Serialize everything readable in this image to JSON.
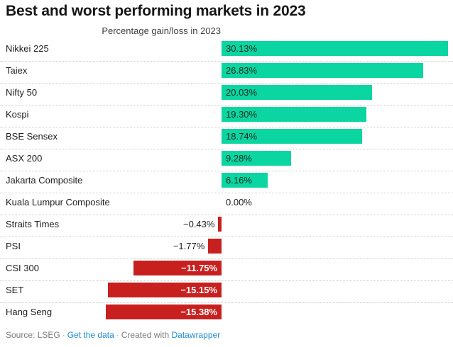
{
  "header": {
    "title": "Best and worst performing markets in 2023",
    "column_header": "Percentage gain/loss in 2023"
  },
  "chart_data": {
    "type": "bar",
    "orientation": "horizontal",
    "title": "Best and worst performing markets in 2023",
    "subtitle": "Percentage gain/loss in 2023",
    "categories": [
      "Nikkei 225",
      "Taiex",
      "Nifty 50",
      "Kospi",
      "BSE Sensex",
      "ASX 200",
      "Jakarta Composite",
      "Kuala Lumpur Composite",
      "Straits Times",
      "PSI",
      "CSI 300",
      "SET",
      "Hang Seng"
    ],
    "values": [
      30.13,
      26.83,
      20.03,
      19.3,
      18.74,
      9.28,
      6.16,
      0,
      -0.43,
      -1.77,
      -11.75,
      -15.15,
      -15.38
    ],
    "value_labels": [
      "30.13%",
      "26.83%",
      "20.03%",
      "19.30%",
      "18.74%",
      "9.28%",
      "6.16%",
      "0.00%",
      "−0.43%",
      "−1.77%",
      "−11.75%",
      "−15.15%",
      "−15.38%"
    ],
    "xlabel": "Percentage gain/loss in 2023",
    "ylabel": "",
    "xlim": [
      -16,
      31
    ],
    "grid": "dotted-row-separators",
    "legend": "none",
    "colors": {
      "positive": "#0bd5a0",
      "negative": "#c7201f",
      "inside_label_positive": "#112a22",
      "inside_label_negative": "#ffffff",
      "outside_label": "#1d1d1d",
      "separator": "#cbcbcb"
    }
  },
  "footer": {
    "source_label": "Source: LSEG",
    "separator": "·",
    "get_data_link": "Get the data",
    "created_with": "Created with",
    "attribution_link": "Datawrapper",
    "link_color": "#1e8ad6"
  }
}
